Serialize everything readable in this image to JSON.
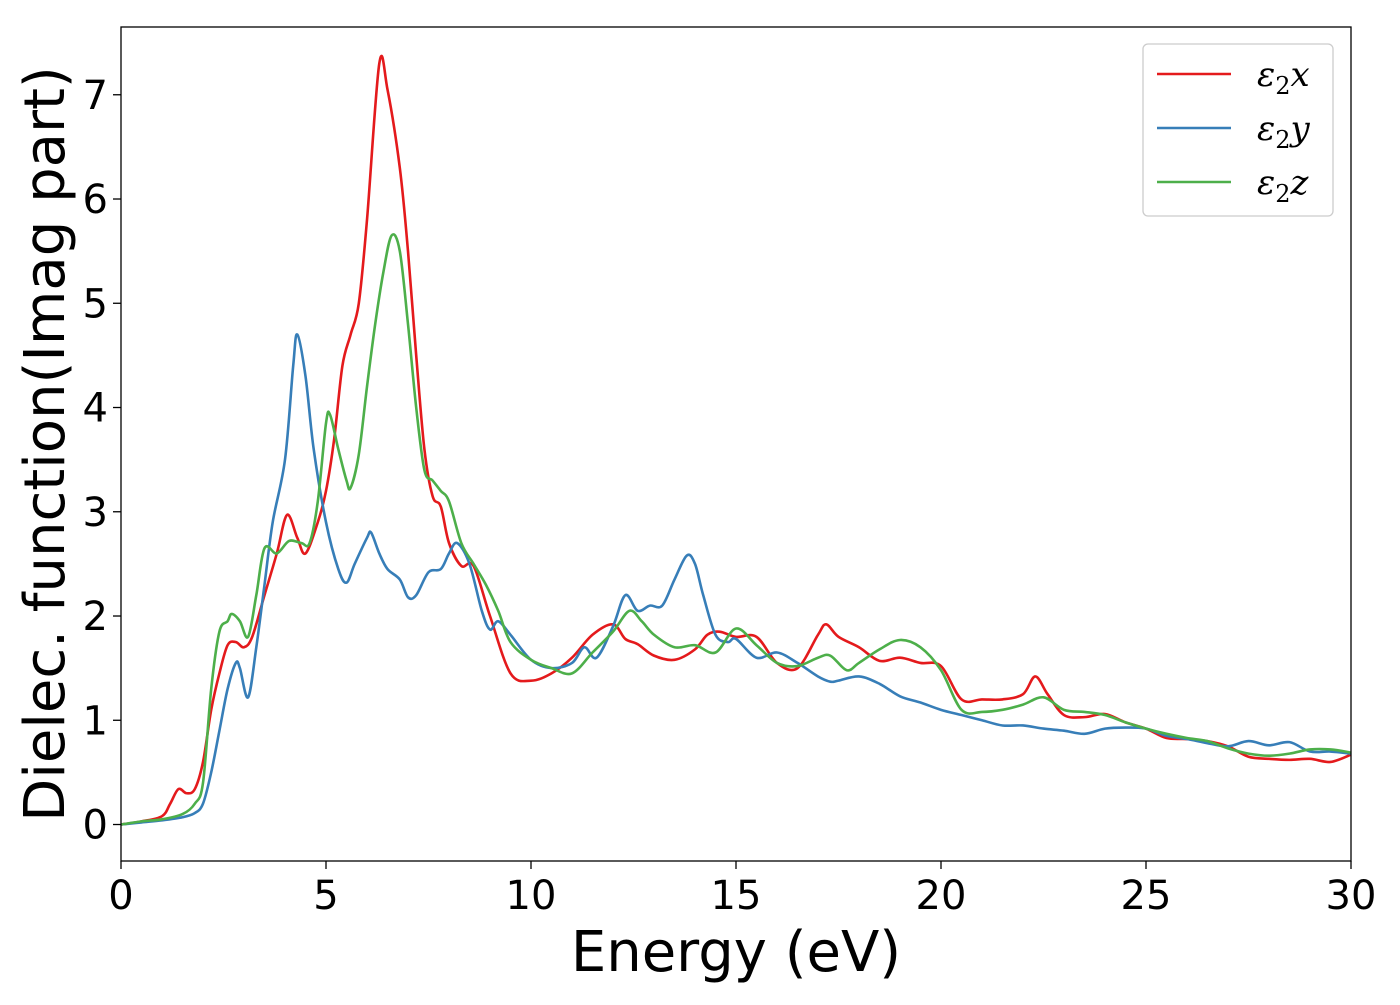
{
  "chart_data": {
    "type": "line",
    "title": "",
    "xlabel": "Energy (eV)",
    "ylabel": "Dielec. function(Imag part)",
    "xlim": [
      0,
      30
    ],
    "ylim": [
      -0.35,
      7.65
    ],
    "x_ticks": [
      "0",
      "5",
      "10",
      "15",
      "20",
      "25",
      "30"
    ],
    "y_ticks": [
      "0",
      "1",
      "2",
      "3",
      "4",
      "5",
      "6",
      "7"
    ],
    "grid": false,
    "legend_position": "top-right",
    "series": [
      {
        "name": "ε₂x",
        "legend_base": "ε",
        "legend_sub": "2",
        "legend_suffix": "x",
        "color": "#e41a1c",
        "x": [
          0,
          0.5,
          1,
          1.2,
          1.4,
          1.6,
          1.8,
          2,
          2.2,
          2.4,
          2.6,
          2.8,
          3,
          3.2,
          3.5,
          3.8,
          4.05,
          4.3,
          4.5,
          4.8,
          5,
          5.2,
          5.4,
          5.6,
          5.8,
          6,
          6.3,
          6.5,
          6.8,
          7,
          7.2,
          7.4,
          7.6,
          7.8,
          8,
          8.3,
          8.6,
          9,
          9.5,
          10,
          10.5,
          11,
          11.5,
          12,
          12.3,
          12.6,
          13,
          13.5,
          14,
          14.3,
          14.6,
          15,
          15.5,
          16,
          16.5,
          17,
          17.2,
          17.5,
          18,
          18.5,
          19,
          19.5,
          20,
          20.5,
          21,
          21.5,
          22,
          22.3,
          22.6,
          23,
          23.5,
          24,
          24.5,
          25,
          25.5,
          26,
          26.5,
          27,
          27.5,
          28,
          28.5,
          29,
          29.5,
          30
        ],
        "y": [
          0,
          0.03,
          0.08,
          0.2,
          0.34,
          0.3,
          0.34,
          0.6,
          1.1,
          1.45,
          1.72,
          1.75,
          1.7,
          1.8,
          2.2,
          2.6,
          2.97,
          2.75,
          2.6,
          2.9,
          3.2,
          3.7,
          4.4,
          4.7,
          5.0,
          5.8,
          7.3,
          7.05,
          6.3,
          5.5,
          4.5,
          3.6,
          3.15,
          3.05,
          2.7,
          2.48,
          2.48,
          2.0,
          1.45,
          1.38,
          1.45,
          1.6,
          1.82,
          1.92,
          1.78,
          1.73,
          1.62,
          1.58,
          1.68,
          1.82,
          1.85,
          1.8,
          1.8,
          1.55,
          1.5,
          1.82,
          1.92,
          1.8,
          1.7,
          1.57,
          1.6,
          1.55,
          1.52,
          1.2,
          1.2,
          1.2,
          1.25,
          1.42,
          1.25,
          1.05,
          1.03,
          1.06,
          0.98,
          0.92,
          0.83,
          0.82,
          0.8,
          0.75,
          0.65,
          0.63,
          0.62,
          0.63,
          0.6,
          0.67
        ]
      },
      {
        "name": "ε₂y",
        "legend_base": "ε",
        "legend_sub": "2",
        "legend_suffix": "y",
        "color": "#377eb8",
        "x": [
          0,
          0.5,
          1,
          1.5,
          1.8,
          2,
          2.2,
          2.4,
          2.6,
          2.8,
          2.9,
          3.1,
          3.3,
          3.5,
          3.7,
          4,
          4.2,
          4.3,
          4.5,
          4.7,
          5,
          5.3,
          5.5,
          5.7,
          6,
          6.1,
          6.3,
          6.5,
          6.8,
          7,
          7.2,
          7.5,
          7.8,
          8,
          8.2,
          8.5,
          8.8,
          9,
          9.2,
          9.5,
          10,
          10.5,
          11,
          11.3,
          11.6,
          12,
          12.3,
          12.6,
          12.9,
          13.2,
          13.5,
          13.8,
          14,
          14.2,
          14.5,
          14.8,
          15,
          15.5,
          16,
          16.5,
          17,
          17.3,
          17.5,
          18,
          18.5,
          19,
          19.5,
          20,
          20.5,
          21,
          21.5,
          22,
          22.5,
          23,
          23.5,
          24,
          24.5,
          25,
          25.5,
          26,
          26.5,
          27,
          27.5,
          28,
          28.5,
          29,
          29.5,
          30
        ],
        "y": [
          0,
          0.02,
          0.04,
          0.07,
          0.11,
          0.2,
          0.5,
          0.9,
          1.3,
          1.55,
          1.5,
          1.22,
          1.7,
          2.3,
          2.9,
          3.5,
          4.4,
          4.7,
          4.3,
          3.6,
          2.9,
          2.45,
          2.32,
          2.5,
          2.75,
          2.8,
          2.6,
          2.45,
          2.35,
          2.18,
          2.2,
          2.42,
          2.45,
          2.6,
          2.7,
          2.5,
          2.05,
          1.87,
          1.95,
          1.82,
          1.58,
          1.5,
          1.55,
          1.7,
          1.6,
          1.9,
          2.2,
          2.05,
          2.1,
          2.1,
          2.35,
          2.58,
          2.5,
          2.2,
          1.82,
          1.75,
          1.78,
          1.6,
          1.65,
          1.55,
          1.42,
          1.37,
          1.38,
          1.42,
          1.35,
          1.23,
          1.17,
          1.1,
          1.05,
          1.0,
          0.95,
          0.95,
          0.92,
          0.9,
          0.87,
          0.92,
          0.93,
          0.92,
          0.85,
          0.82,
          0.78,
          0.75,
          0.8,
          0.76,
          0.79,
          0.7,
          0.7,
          0.68
        ]
      },
      {
        "name": "ε₂z",
        "legend_base": "ε",
        "legend_sub": "2",
        "legend_suffix": "z",
        "color": "#4daf4a",
        "x": [
          0,
          0.5,
          1,
          1.5,
          1.8,
          2,
          2.2,
          2.4,
          2.6,
          2.7,
          2.9,
          3.1,
          3.3,
          3.5,
          3.8,
          4.1,
          4.4,
          4.6,
          4.8,
          5.0,
          5.1,
          5.3,
          5.5,
          5.6,
          5.8,
          6,
          6.2,
          6.4,
          6.6,
          6.8,
          7,
          7.2,
          7.4,
          7.6,
          7.8,
          8,
          8.3,
          8.6,
          8.9,
          9.2,
          9.5,
          10,
          10.5,
          11,
          11.5,
          12,
          12.4,
          12.7,
          13,
          13.5,
          14,
          14.5,
          15,
          15.5,
          16,
          16.5,
          17,
          17.3,
          17.7,
          18,
          18.5,
          19,
          19.5,
          20,
          20.5,
          21,
          21.5,
          22,
          22.5,
          23,
          23.5,
          24,
          24.5,
          25,
          25.5,
          26,
          26.5,
          27,
          27.5,
          28,
          28.5,
          29,
          29.5,
          30
        ],
        "y": [
          0,
          0.03,
          0.05,
          0.1,
          0.2,
          0.4,
          1.3,
          1.85,
          1.95,
          2.02,
          1.95,
          1.8,
          2.2,
          2.65,
          2.6,
          2.72,
          2.7,
          2.7,
          3.1,
          3.85,
          3.93,
          3.6,
          3.3,
          3.23,
          3.55,
          4.2,
          4.8,
          5.3,
          5.65,
          5.5,
          4.8,
          4.0,
          3.4,
          3.3,
          3.2,
          3.1,
          2.7,
          2.5,
          2.3,
          2.05,
          1.75,
          1.58,
          1.5,
          1.45,
          1.65,
          1.85,
          2.05,
          1.95,
          1.82,
          1.7,
          1.72,
          1.65,
          1.88,
          1.72,
          1.55,
          1.52,
          1.6,
          1.62,
          1.48,
          1.55,
          1.68,
          1.77,
          1.7,
          1.48,
          1.1,
          1.08,
          1.1,
          1.15,
          1.22,
          1.1,
          1.08,
          1.05,
          0.98,
          0.92,
          0.87,
          0.83,
          0.8,
          0.73,
          0.68,
          0.66,
          0.68,
          0.72,
          0.72,
          0.69
        ]
      }
    ]
  }
}
